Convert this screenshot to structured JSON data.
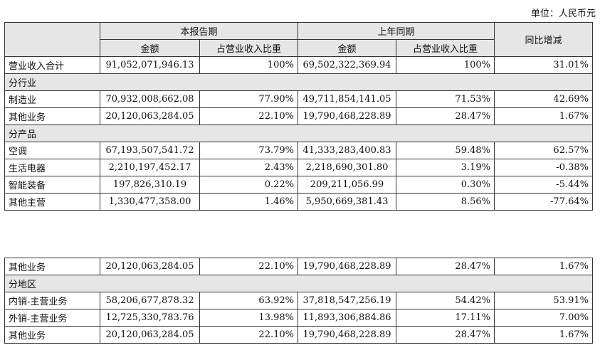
{
  "unit_label": "单位：人民币元",
  "header": {
    "current_period": "本报告期",
    "prior_period": "上年同期",
    "yoy_change": "同比增减",
    "amount": "金额",
    "share_of_revenue": "占营业收入比重"
  },
  "table1": {
    "total": {
      "label": "营业收入合计",
      "cur_amt": "91,052,071,946.13",
      "cur_pct": "100%",
      "prev_amt": "69,502,322,369.94",
      "prev_pct": "100%",
      "yoy": "31.01%"
    },
    "section_industry": "分行业",
    "industry": [
      {
        "label": "制造业",
        "cur_amt": "70,932,008,662.08",
        "cur_pct": "77.90%",
        "prev_amt": "49,711,854,141.05",
        "prev_pct": "71.53%",
        "yoy": "42.69%"
      },
      {
        "label": "其他业务",
        "cur_amt": "20,120,063,284.05",
        "cur_pct": "22.10%",
        "prev_amt": "19,790,468,228.89",
        "prev_pct": "28.47%",
        "yoy": "1.67%"
      }
    ],
    "section_product": "分产品",
    "product": [
      {
        "label": "空调",
        "cur_amt": "67,193,507,541.72",
        "cur_pct": "73.79%",
        "prev_amt": "41,333,283,400.83",
        "prev_pct": "59.48%",
        "yoy": "62.57%"
      },
      {
        "label": "生活电器",
        "cur_amt": "2,210,197,452.17",
        "cur_pct": "2.43%",
        "prev_amt": "2,218,690,301.80",
        "prev_pct": "3.19%",
        "yoy": "-0.38%"
      },
      {
        "label": "智能装备",
        "cur_amt": "197,826,310.19",
        "cur_pct": "0.22%",
        "prev_amt": "209,211,056.99",
        "prev_pct": "0.30%",
        "yoy": "-5.44%"
      },
      {
        "label": "其他主营",
        "cur_amt": "1,330,477,358.00",
        "cur_pct": "1.46%",
        "prev_amt": "5,950,669,381.43",
        "prev_pct": "8.56%",
        "yoy": "-77.64%"
      }
    ]
  },
  "table2": {
    "other": {
      "label": "其他业务",
      "cur_amt": "20,120,063,284.05",
      "cur_pct": "22.10%",
      "prev_amt": "19,790,468,228.89",
      "prev_pct": "28.47%",
      "yoy": "1.67%"
    },
    "section_region": "分地区",
    "region": [
      {
        "label": "内销-主营业务",
        "cur_amt": "58,206,677,878.32",
        "cur_pct": "63.92%",
        "prev_amt": "37,818,547,256.19",
        "prev_pct": "54.42%",
        "yoy": "53.91%"
      },
      {
        "label": "外销-主营业务",
        "cur_amt": "12,725,330,783.76",
        "cur_pct": "13.98%",
        "prev_amt": "11,893,306,884.86",
        "prev_pct": "17.11%",
        "yoy": "7.00%"
      },
      {
        "label": "其他业务",
        "cur_amt": "20,120,063,284.05",
        "cur_pct": "22.10%",
        "prev_amt": "19,790,468,228.89",
        "prev_pct": "28.47%",
        "yoy": "1.67%"
      }
    ]
  }
}
